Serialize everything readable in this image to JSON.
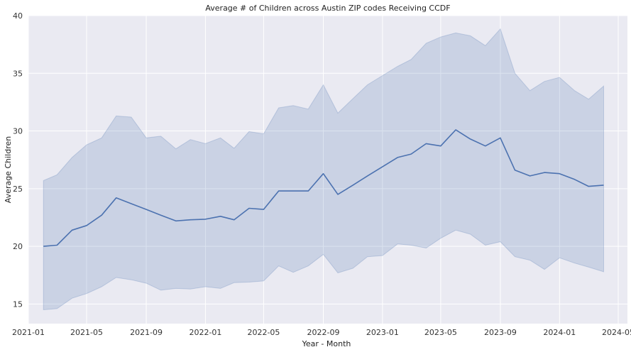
{
  "chart_data": {
    "type": "line",
    "title": "Average # of Children across Austin ZIP codes Receiving CCDF",
    "xlabel": "Year - Month",
    "ylabel": "Average Children",
    "ylim": [
      13.3,
      40
    ],
    "xlim": [
      "2021-01-01",
      "2024-05-20"
    ],
    "yticks": [
      15,
      20,
      25,
      30,
      35,
      40
    ],
    "xticks": [
      "2021-01",
      "2021-05",
      "2021-09",
      "2022-01",
      "2022-05",
      "2022-09",
      "2023-01",
      "2023-05",
      "2023-09",
      "2024-01",
      "2024-05"
    ],
    "grid": true,
    "colors": {
      "background": "#eaeaf2",
      "grid": "#ffffff",
      "line": "#4c72b0",
      "band": "#4c72b0"
    },
    "series": [
      {
        "x": [
          "2021-02",
          "2021-03",
          "2021-04",
          "2021-05",
          "2021-06",
          "2021-07",
          "2021-08",
          "2021-09",
          "2021-10",
          "2021-11",
          "2021-12",
          "2022-01",
          "2022-02",
          "2022-03",
          "2022-04",
          "2022-05",
          "2022-06",
          "2022-07",
          "2022-08",
          "2022-09",
          "2022-10",
          "2022-11",
          "2022-12",
          "2023-01",
          "2023-02",
          "2023-03",
          "2023-04",
          "2023-05",
          "2023-06",
          "2023-07",
          "2023-08",
          "2023-09",
          "2023-10",
          "2023-11",
          "2023-12",
          "2024-01",
          "2024-02",
          "2024-03",
          "2024-04"
        ],
        "mean": [
          20.0,
          20.1,
          21.4,
          21.8,
          22.7,
          24.2,
          23.7,
          23.2,
          22.7,
          22.2,
          22.3,
          22.35,
          22.6,
          22.3,
          23.3,
          23.2,
          24.8,
          24.8,
          24.8,
          26.3,
          24.5,
          25.3,
          26.1,
          26.9,
          27.7,
          28.0,
          28.9,
          28.7,
          30.1,
          29.3,
          28.7,
          29.4,
          26.6,
          26.1,
          26.4,
          26.3,
          25.8,
          25.2,
          25.3
        ],
        "ci_low": [
          14.5,
          14.6,
          15.5,
          15.9,
          16.5,
          17.3,
          17.1,
          16.8,
          16.2,
          16.35,
          16.3,
          16.5,
          16.35,
          16.85,
          16.9,
          17.0,
          18.3,
          17.75,
          18.3,
          19.3,
          17.7,
          18.1,
          19.1,
          19.2,
          20.2,
          20.1,
          19.85,
          20.7,
          21.4,
          21.05,
          20.1,
          20.4,
          19.1,
          18.8,
          18.0,
          19.0,
          18.55,
          18.2,
          17.8
        ],
        "ci_high": [
          25.7,
          26.2,
          27.7,
          28.8,
          29.4,
          31.3,
          31.2,
          29.4,
          29.55,
          28.45,
          29.25,
          28.9,
          29.4,
          28.5,
          29.95,
          29.75,
          32.0,
          32.2,
          31.9,
          34.0,
          31.55,
          32.8,
          34.0,
          34.8,
          35.6,
          36.2,
          37.6,
          38.15,
          38.5,
          38.25,
          37.4,
          38.85,
          35.0,
          33.5,
          34.3,
          34.65,
          33.5,
          32.75,
          33.9
        ]
      }
    ]
  }
}
